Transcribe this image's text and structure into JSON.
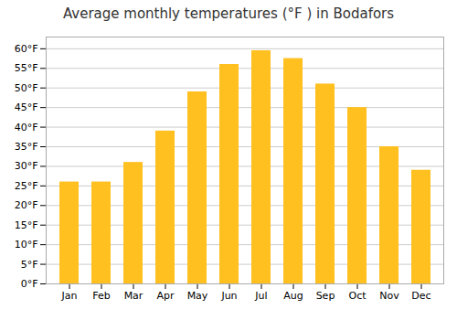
{
  "chart_data": {
    "type": "bar",
    "title": "Average monthly temperatures (°F ) in Bodafors",
    "categories": [
      "Jan",
      "Feb",
      "Mar",
      "Apr",
      "May",
      "Jun",
      "Jul",
      "Aug",
      "Sep",
      "Oct",
      "Nov",
      "Dec"
    ],
    "values": [
      26,
      26,
      31,
      39,
      49,
      56,
      59.5,
      57.5,
      51,
      45,
      35,
      29
    ],
    "color": "#FFC020",
    "ylim": [
      0,
      63
    ],
    "yticks": [
      {
        "value": 0,
        "label": "0°F"
      },
      {
        "value": 5,
        "label": "5°F"
      },
      {
        "value": 10,
        "label": "10°F"
      },
      {
        "value": 15,
        "label": "15°F"
      },
      {
        "value": 20,
        "label": "20°F"
      },
      {
        "value": 25,
        "label": "25°F"
      },
      {
        "value": 30,
        "label": "30°F"
      },
      {
        "value": 35,
        "label": "35°F"
      },
      {
        "value": 40,
        "label": "40°F"
      },
      {
        "value": 45,
        "label": "45°F"
      },
      {
        "value": 50,
        "label": "50°F"
      },
      {
        "value": 55,
        "label": "55°F"
      },
      {
        "value": 60,
        "label": "60°F"
      }
    ],
    "grid": true
  }
}
